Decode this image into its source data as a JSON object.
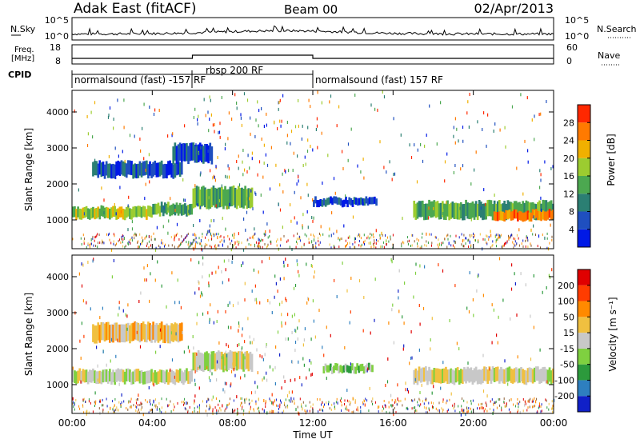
{
  "header": {
    "station": "Adak East (fitACF)",
    "beam": "Beam 00",
    "date": "02/Apr/2013"
  },
  "status_panels": {
    "nsky": {
      "label": "N.Sky",
      "ticks": [
        "10^5",
        "10^0"
      ]
    },
    "nsearch": {
      "label": "N.Search",
      "ticks": [
        "10^5",
        "10^0"
      ]
    },
    "freq": {
      "label_top": "Freq.",
      "label_unit": "[MHz]",
      "ticks": [
        "18",
        "8"
      ]
    },
    "nave": {
      "label": "Nave",
      "ticks": [
        "60",
        "0"
      ]
    },
    "cpid": {
      "label": "CPID",
      "segments": [
        {
          "name": "normalsound (fast) -157 RF",
          "start_hr": 0,
          "end_hr": 6
        },
        {
          "name": "rbsp 200 RF",
          "start_hr": 6,
          "end_hr": 12
        },
        {
          "name": "normalsound (fast) 157 RF",
          "start_hr": 12,
          "end_hr": 24
        }
      ]
    }
  },
  "chart_data": [
    {
      "type": "heatmap",
      "name": "Power",
      "xlabel": "",
      "ylabel": "Slant Range [km]",
      "xlim": [
        0,
        24
      ],
      "ylim": [
        200,
        4600
      ],
      "yticks": [
        "1000",
        "2000",
        "3000",
        "4000"
      ],
      "colorbar": {
        "label": "Power [dB]",
        "ticks": [
          "4",
          "8",
          "12",
          "16",
          "20",
          "24",
          "28"
        ],
        "colors": [
          "#0019e6",
          "#1f4fbf",
          "#2b7f73",
          "#4ca850",
          "#9ccc30",
          "#f0b000",
          "#ff7a00",
          "#ff2800"
        ]
      },
      "bands": [
        {
          "t0": 0.0,
          "t1": 4.0,
          "r0": 1050,
          "r1": 1350,
          "level": 4
        },
        {
          "t0": 4.0,
          "t1": 6.0,
          "r0": 1150,
          "r1": 1450,
          "level": 3
        },
        {
          "t0": 6.0,
          "t1": 9.0,
          "r0": 1350,
          "r1": 1900,
          "level": 3
        },
        {
          "t0": 1.0,
          "t1": 5.5,
          "r0": 2200,
          "r1": 2600,
          "level": 1
        },
        {
          "t0": 5.0,
          "t1": 7.0,
          "r0": 2600,
          "r1": 3100,
          "level": 1
        },
        {
          "t0": 12.0,
          "t1": 15.2,
          "r0": 1400,
          "r1": 1600,
          "level": 1
        },
        {
          "t0": 17.0,
          "t1": 24.0,
          "r0": 1050,
          "r1": 1500,
          "level": 3
        },
        {
          "t0": 21.0,
          "t1": 24.0,
          "r0": 1000,
          "r1": 1250,
          "level": 6
        }
      ]
    },
    {
      "type": "heatmap",
      "name": "Velocity",
      "xlabel": "Time UT",
      "ylabel": "Slant Range [km]",
      "xlim": [
        0,
        24
      ],
      "ylim": [
        200,
        4600
      ],
      "xticks": [
        "00:00",
        "04:00",
        "08:00",
        "12:00",
        "16:00",
        "20:00",
        "00:00"
      ],
      "yticks": [
        "1000",
        "2000",
        "3000",
        "4000"
      ],
      "colorbar": {
        "label": "Velocity [m s⁻¹]",
        "ticks": [
          "200",
          "100",
          "50",
          "15",
          "-15",
          "-50",
          "-100",
          "-200"
        ],
        "colors": [
          "#1020c8",
          "#2e7fbf",
          "#2c9a3c",
          "#7fd040",
          "#c8c8c8",
          "#f0c040",
          "#ff8a00",
          "#ff3c00",
          "#e00000"
        ]
      },
      "bands": [
        {
          "t0": 0.0,
          "t1": 6.0,
          "r0": 1050,
          "r1": 1400,
          "level": 4
        },
        {
          "t0": 6.0,
          "t1": 9.0,
          "r0": 1400,
          "r1": 1900,
          "level": 4
        },
        {
          "t0": 1.0,
          "t1": 5.5,
          "r0": 2200,
          "r1": 2700,
          "level": 5
        },
        {
          "t0": 12.5,
          "t1": 15.0,
          "r0": 1350,
          "r1": 1550,
          "level": 3
        },
        {
          "t0": 17.0,
          "t1": 24.0,
          "r0": 1050,
          "r1": 1450,
          "level": 4
        }
      ]
    }
  ]
}
